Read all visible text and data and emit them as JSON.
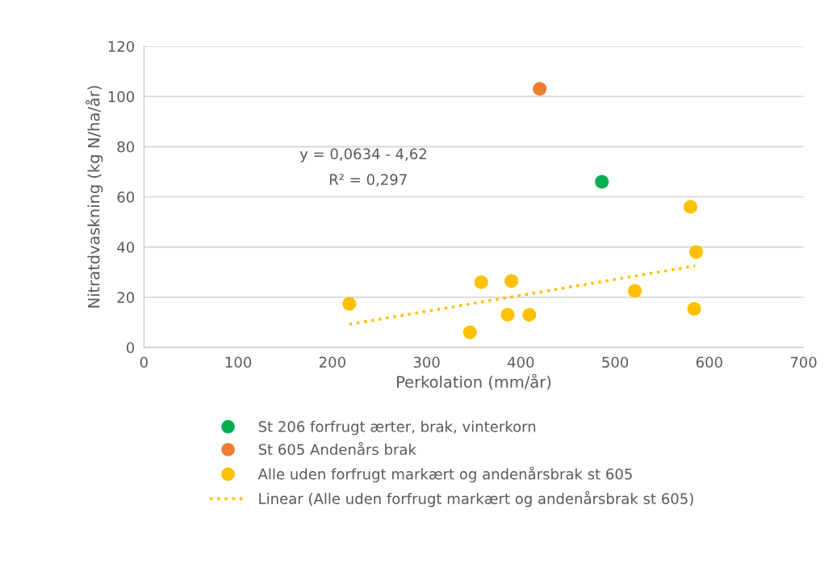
{
  "chart_data": {
    "type": "scatter",
    "xlabel": "Perkolation (mm/år)",
    "ylabel": "Nitratdvaskning (kg N/ha/år)",
    "xlim": [
      0,
      700
    ],
    "xticks": [
      0,
      100,
      200,
      300,
      400,
      500,
      600,
      700
    ],
    "ylim": [
      0,
      120
    ],
    "yticks": [
      0,
      20,
      40,
      60,
      80,
      100,
      120
    ],
    "grid": "y",
    "legend": "bottom",
    "marker": "circle",
    "annotations": [
      "y = 0,0634 - 4,62",
      "R² = 0,297"
    ],
    "series": [
      {
        "name": "St 206 forfrugt ærter, brak, vinterkorn",
        "color": "#00b050",
        "x": [
          486
        ],
        "values": [
          66
        ]
      },
      {
        "name": "St 605 Andenårs brak",
        "color": "#ed7d31",
        "x": [
          420
        ],
        "values": [
          103
        ]
      },
      {
        "name": "Alle uden forfrugt markært og andenårsbrak st 605",
        "color": "#ffc000",
        "x": [
          218,
          346,
          358,
          386,
          390,
          409,
          521,
          580,
          586,
          584
        ],
        "values": [
          17.4,
          6,
          26,
          13,
          26.5,
          13,
          22.5,
          56,
          38,
          15.4
        ]
      },
      {
        "name": "Linear (Alle uden forfrugt markært og andenårsbrak st 605)",
        "type": "line",
        "line_style": "dotted",
        "marker": "none",
        "color": "#ffc000",
        "x": [
          218,
          585
        ],
        "values": [
          9.2,
          32.5
        ]
      }
    ]
  }
}
